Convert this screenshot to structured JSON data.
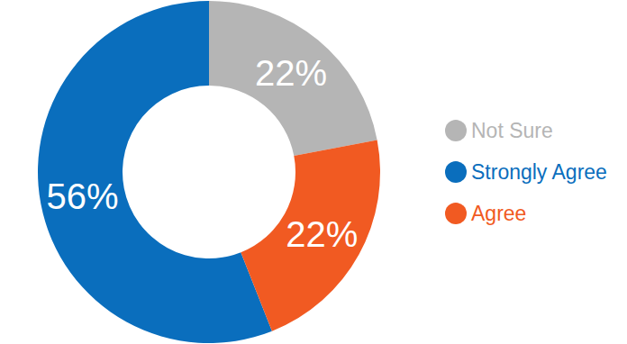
{
  "chart_data": {
    "type": "donut",
    "categories": [
      "Not Sure",
      "Strongly Agree",
      "Agree"
    ],
    "values": [
      22,
      56,
      22
    ],
    "value_labels": [
      "22%",
      "56%",
      "22%"
    ],
    "colors": [
      "#b5b5b5",
      "#0a6ebd",
      "#f15a22"
    ],
    "data_labels": true,
    "legend": "right"
  }
}
